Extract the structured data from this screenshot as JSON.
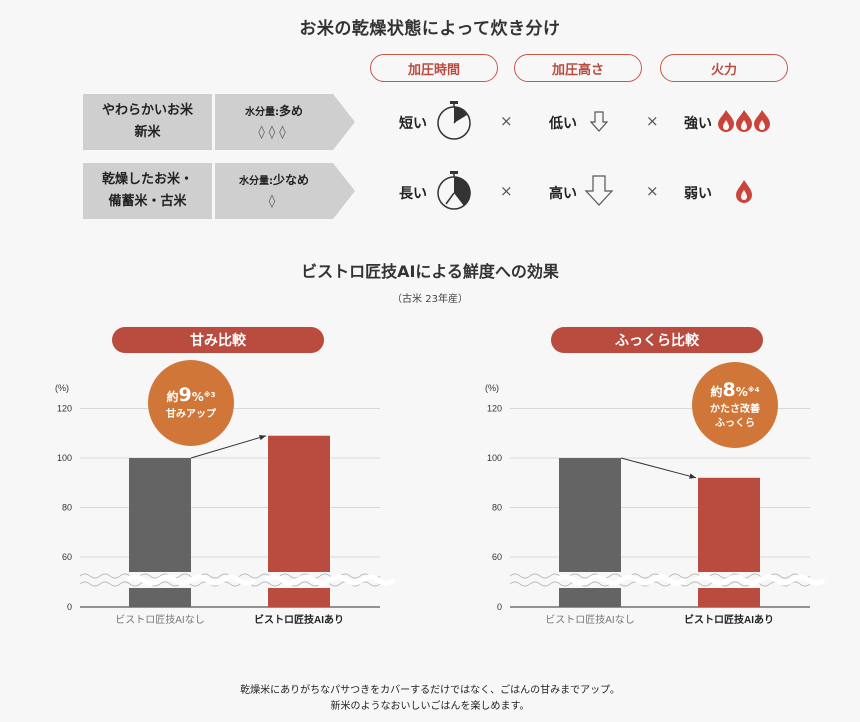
{
  "heading": "お米の乾燥状態によって炊き分け",
  "columns": [
    "加圧時間",
    "加圧高さ",
    "火力"
  ],
  "rows": [
    {
      "label_line1": "やわらかいお米",
      "label_line2": "新米",
      "water_prefix": "水分量:",
      "water_value": "多め",
      "drops": "◊◊◊",
      "time": "短い",
      "height": "低い",
      "heat": "強い",
      "times_symbol": "×"
    },
    {
      "label_line1": "乾燥したお米・",
      "label_line2": "備蓄米・古米",
      "water_prefix": "水分量:",
      "water_value": "少なめ",
      "drops": "◊",
      "time": "長い",
      "height": "高い",
      "heat": "弱い",
      "times_symbol": "×"
    }
  ],
  "section2_title": "ビストロ匠技AIによる鮮度への効果",
  "section2_sub": "（古米 23年産）",
  "colors": {
    "accent": "#b94b3f",
    "badge": "#cf7638",
    "gray_bar": "#646464",
    "red_bar": "#b94b3f"
  },
  "chart_data": [
    {
      "type": "bar",
      "title": "甘み比較",
      "ylabel": "(%)",
      "yticks": [
        "0",
        "60",
        "80",
        "100",
        "120"
      ],
      "categories": [
        "ビストロ匠技AIなし",
        "ビストロ匠技AIあり"
      ],
      "values": [
        100,
        109
      ],
      "ylim": [
        0,
        120
      ],
      "axis_break": true,
      "badge": {
        "prefix": "約",
        "number": "9",
        "unit": "%",
        "note": "※3",
        "lines": [
          "甘みアップ"
        ]
      }
    },
    {
      "type": "bar",
      "title": "ふっくら比較",
      "ylabel": "(%)",
      "yticks": [
        "0",
        "60",
        "80",
        "100",
        "120"
      ],
      "categories": [
        "ビストロ匠技AIなし",
        "ビストロ匠技AIあり"
      ],
      "values": [
        100,
        92
      ],
      "ylim": [
        0,
        120
      ],
      "axis_break": true,
      "badge": {
        "prefix": "約",
        "number": "8",
        "unit": "%",
        "note": "※4",
        "lines": [
          "かたさ改善",
          "ふっくら"
        ]
      }
    }
  ],
  "footer_line1": "乾燥米にありがちなパサつきをカバーするだけではなく、ごはんの甘みまでアップ。",
  "footer_line2": "新米のようなおいしいごはんを楽しめます。"
}
